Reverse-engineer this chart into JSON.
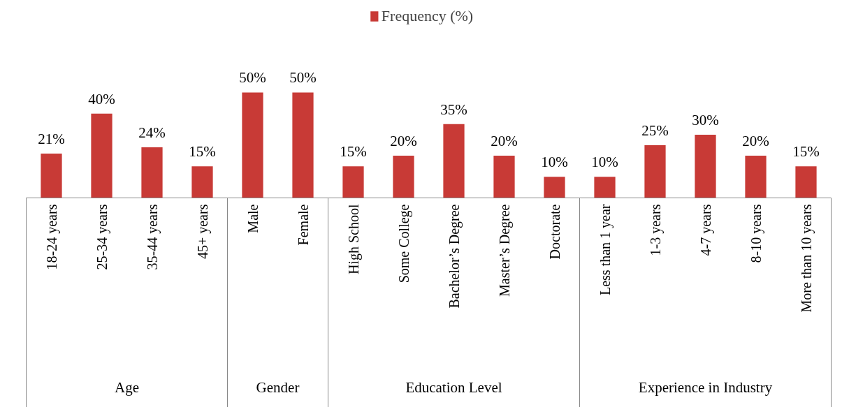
{
  "chart_data": {
    "type": "bar",
    "categories": [
      "18-24 years",
      "25-34 years",
      "35-44 years",
      "45+ years",
      "Male",
      "Female",
      "High School",
      "Some College",
      "Bachelor’s Degree",
      "Master’s Degree",
      "Doctorate",
      "Less than 1 year",
      "1-3 years",
      "4-7 years",
      "8-10 years",
      "More than 10 years"
    ],
    "series": [
      {
        "name": "Frequency (%)",
        "color": "#c83a36",
        "values": [
          21,
          40,
          24,
          15,
          50,
          50,
          15,
          20,
          35,
          20,
          10,
          10,
          25,
          30,
          20,
          15
        ],
        "value_labels": [
          "21%",
          "40%",
          "24%",
          "15%",
          "50%",
          "50%",
          "15%",
          "20%",
          "35%",
          "20%",
          "10%",
          "10%",
          "25%",
          "30%",
          "20%",
          "15%"
        ]
      }
    ],
    "annotations": [
      "Age",
      "Gender",
      "Education Level",
      "Experience in Industry"
    ],
    "legend": "top",
    "grid": false
  }
}
